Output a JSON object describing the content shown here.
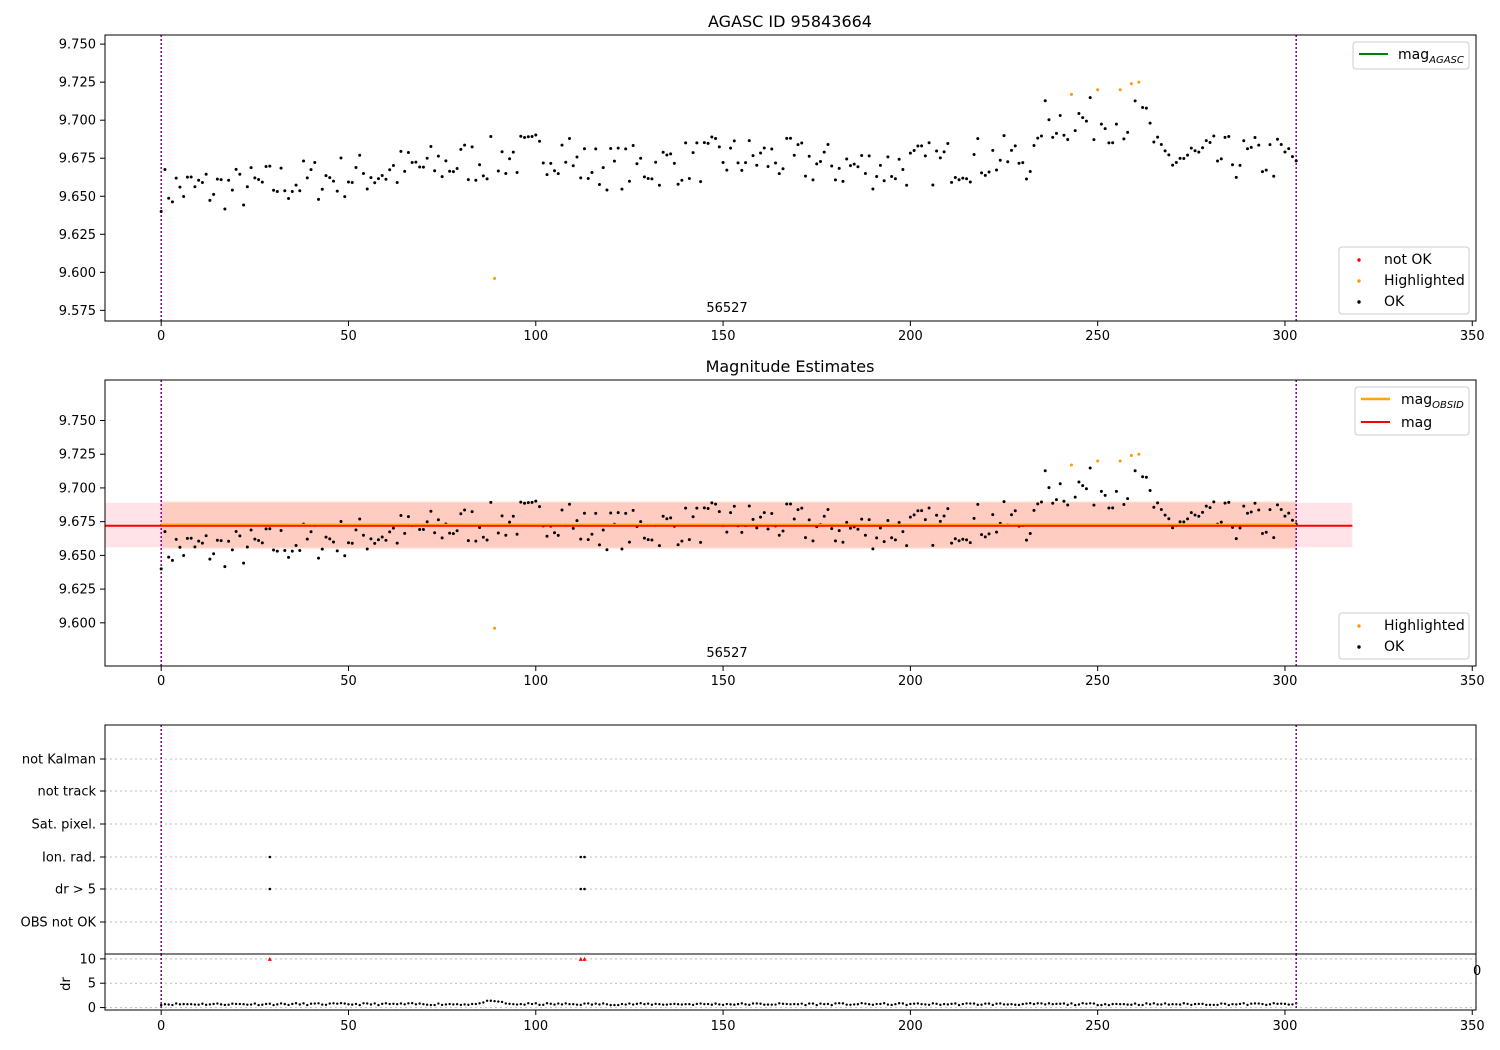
{
  "figure": {
    "colors": {
      "ok": "#000000",
      "highlighted": "#ff9900",
      "not_ok": "#ff0000",
      "mag_agasc": "#008000",
      "mag_obsid": "#ffa500",
      "mag": "#ff0000",
      "obs_band": "#ffa07a",
      "mag_band": "#ffc0cb",
      "obs_boundary": "#800080"
    }
  },
  "chart_data": [
    {
      "type": "scatter",
      "title": "AGASC ID 95843664",
      "obsid_label": "56527",
      "xlim": [
        -15,
        351
      ],
      "ylim": [
        9.568,
        9.756
      ],
      "x_ticks": [
        "0",
        "50",
        "100",
        "150",
        "200",
        "250",
        "300",
        "350"
      ],
      "y_ticks": [
        "9.575",
        "9.600",
        "9.625",
        "9.650",
        "9.675",
        "9.700",
        "9.725",
        "9.750"
      ],
      "obs_boundaries": [
        0,
        303
      ],
      "series": [
        {
          "name": "not OK",
          "points": []
        },
        {
          "name": "Highlighted",
          "points": [
            [
              89,
              9.596
            ],
            [
              243,
              9.717
            ],
            [
              250,
              9.72
            ],
            [
              256,
              9.72
            ],
            [
              259,
              9.724
            ],
            [
              261,
              9.725
            ]
          ]
        },
        {
          "name": "OK",
          "points": "see ok_points"
        }
      ],
      "legend": {
        "line": [
          "magAGASC"
        ],
        "markers": [
          "not OK",
          "Highlighted",
          "OK"
        ]
      }
    },
    {
      "type": "scatter",
      "title": "Magnitude Estimates",
      "obsid_label": "56527",
      "xlim": [
        -15,
        351
      ],
      "ylim": [
        9.568,
        9.78
      ],
      "x_ticks": [
        "0",
        "50",
        "100",
        "150",
        "200",
        "250",
        "300",
        "350"
      ],
      "y_ticks": [
        "9.600",
        "9.625",
        "9.650",
        "9.675",
        "9.700",
        "9.725",
        "9.750"
      ],
      "obs_boundaries": [
        0,
        303
      ],
      "mag": 9.672,
      "mag_band": [
        9.656,
        9.689
      ],
      "mag_range_x": [
        -15,
        318
      ],
      "mag_obsid": 9.673,
      "obsid_band": [
        9.655,
        9.69
      ],
      "obsid_range_x": [
        0,
        303
      ],
      "legend": {
        "lines": [
          "magOBSID",
          "mag"
        ],
        "markers": [
          "Highlighted",
          "OK"
        ]
      }
    },
    {
      "type": "scatter",
      "categories": [
        "not Kalman",
        "not track",
        "Sat. pixel.",
        "Ion. rad.",
        "dr > 5",
        "OBS not OK"
      ],
      "flag_points": {
        "Ion. rad.": [
          29,
          112,
          113
        ],
        "dr > 5": [
          29,
          112,
          113
        ]
      },
      "xlim": [
        -15,
        351
      ],
      "x_ticks": [
        "0",
        "50",
        "100",
        "150",
        "200",
        "250",
        "300",
        "350"
      ],
      "obs_boundaries": [
        0,
        303
      ]
    },
    {
      "type": "scatter",
      "ylabel": "dr",
      "ylim": [
        -0.5,
        11
      ],
      "y_ticks": [
        "0",
        "5",
        "10"
      ],
      "clipped_points": [
        29,
        112,
        113
      ],
      "clip_value": 10,
      "stray_tick_label": "0"
    }
  ]
}
